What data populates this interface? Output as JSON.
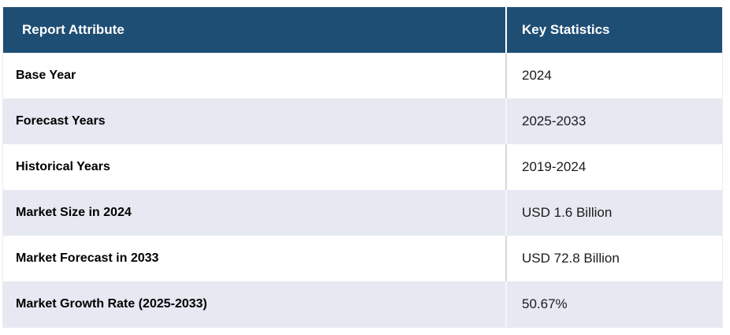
{
  "table": {
    "header": {
      "report_attribute": "Report Attribute",
      "key_statistics": "Key Statistics"
    },
    "rows": [
      {
        "attribute": "Base Year",
        "value": "2024"
      },
      {
        "attribute": "Forecast Years",
        "value": "2025-2033"
      },
      {
        "attribute": "Historical Years",
        "value": "2019-2024"
      },
      {
        "attribute": "Market Size in 2024",
        "value": "USD 1.6 Billion"
      },
      {
        "attribute": "Market Forecast in 2033",
        "value": "USD 72.8 Billion"
      },
      {
        "attribute": "Market Growth Rate (2025-2033)",
        "value": "50.67%"
      }
    ],
    "colors": {
      "header_bg": "#1f4e74",
      "header_text": "#ffffff",
      "row_bg": "#ffffff",
      "alt_row_bg": "#e6e8f2",
      "column_divider": "#d9d9d9",
      "body_text": "#1b1b1b"
    }
  },
  "chart_data": {
    "type": "table",
    "title": "Report Attribute vs Key Statistics",
    "columns": [
      "Report Attribute",
      "Key Statistics"
    ],
    "rows": [
      [
        "Base Year",
        "2024"
      ],
      [
        "Forecast Years",
        "2025-2033"
      ],
      [
        "Historical Years",
        "2019-2024"
      ],
      [
        "Market Size in 2024",
        "USD 1.6 Billion"
      ],
      [
        "Market Forecast in 2033",
        "USD 72.8 Billion"
      ],
      [
        "Market Growth Rate (2025-2033)",
        "50.67%"
      ]
    ],
    "layout_hints": {
      "header_style": "dark-blue background, white bold text",
      "zebra_striping": "white / light-lavender alternating rows",
      "grid": "column divider only"
    }
  }
}
